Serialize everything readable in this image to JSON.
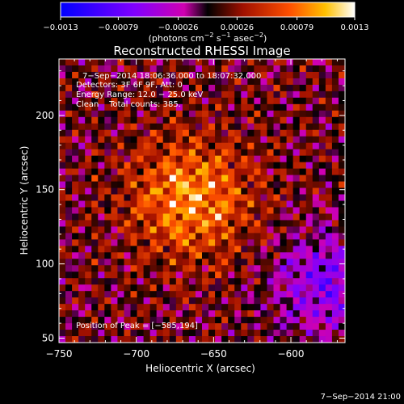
{
  "chart_data": {
    "type": "heatmap",
    "title": "Reconstructed RHESSI Image",
    "xlabel": "Heliocentric X (arcsec)",
    "ylabel": "Heliocentric Y (arcsec)",
    "xlim": [
      -750,
      -565
    ],
    "ylim": [
      47,
      238
    ],
    "x_ticks": [
      -750,
      -700,
      -650,
      -600
    ],
    "x_tick_labels": [
      "−750",
      "−700",
      "−650",
      "−600"
    ],
    "y_ticks": [
      50,
      100,
      150,
      200
    ],
    "y_tick_labels": [
      "50",
      "100",
      "150",
      "200"
    ],
    "colorbar": {
      "range": [
        -0.0013,
        0.0013
      ],
      "ticks": [
        -0.0013,
        -0.00079,
        -0.00026,
        0.00026,
        0.00079,
        0.0013
      ],
      "tick_labels": [
        "−0.0013",
        "−0.00079",
        "−0.00026",
        "0.00026",
        "0.00079",
        "0.0013"
      ],
      "unit_parts": [
        "(photons cm",
        "−2",
        " s",
        "−1",
        " asec",
        "−2",
        ")"
      ]
    },
    "annotations": [
      "7−Sep−2014 18:06:36.000 to 18:07:32.000",
      "Detectors: 3F 6F 9F, Att: 0",
      "Energy Range: 12.0 − 25.0 keV",
      "Clean    Total counts: 385."
    ],
    "peak_label": "Position of Peak = [−585,194]",
    "peak": [
      -585,
      194
    ],
    "timestamp": "7−Sep−2014 21:00"
  }
}
